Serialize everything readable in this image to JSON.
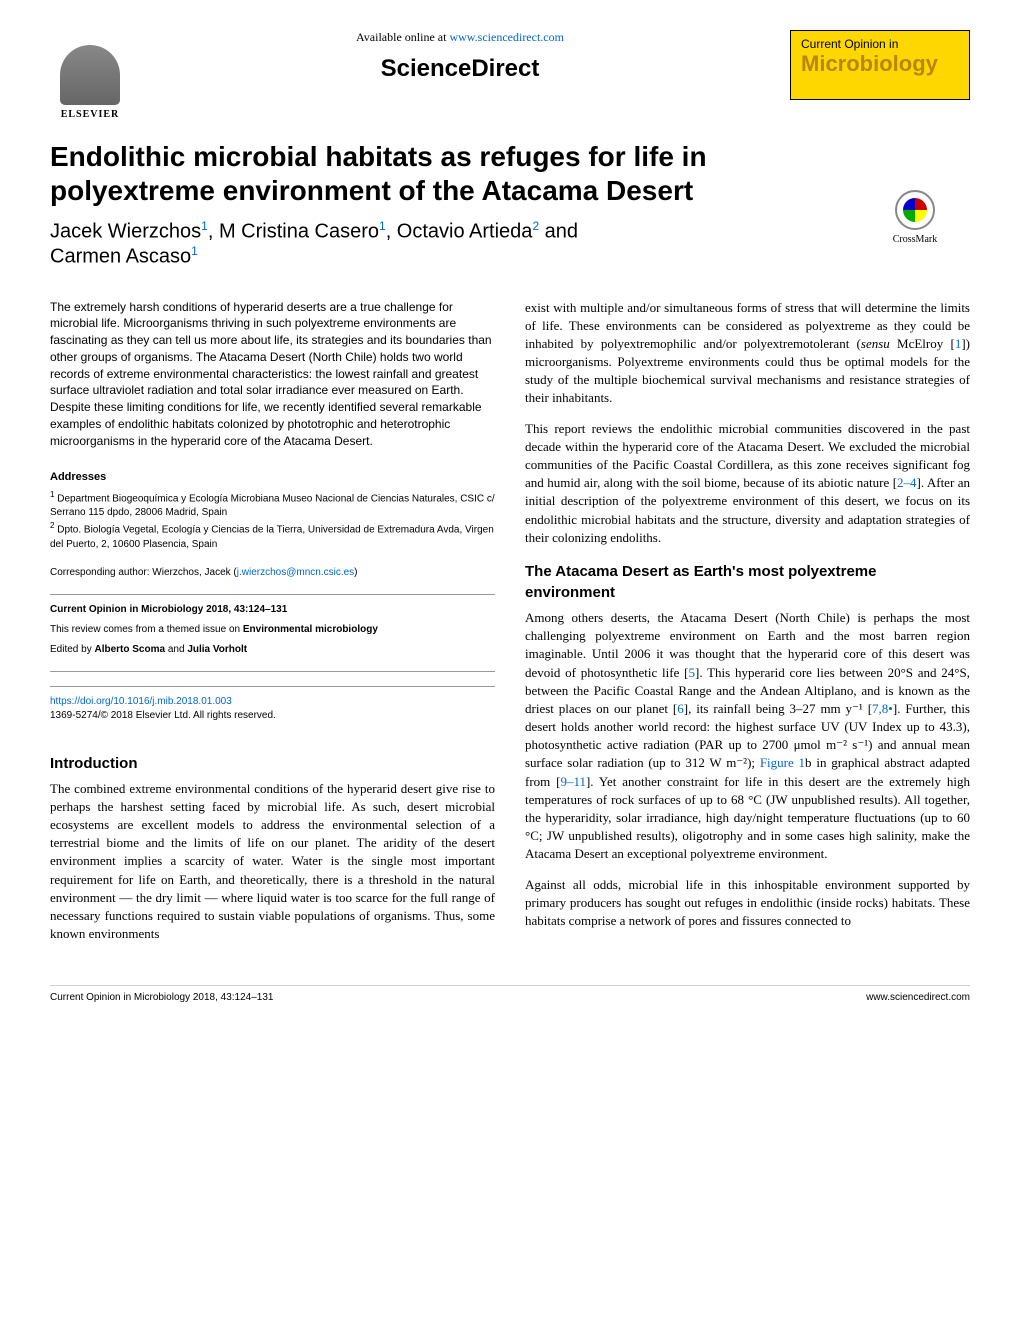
{
  "header": {
    "available_text": "Available online at ",
    "available_url": "www.sciencedirect.com",
    "sciencedirect": "ScienceDirect",
    "elsevier": "ELSEVIER",
    "journal_subtitle": "Current Opinion in",
    "journal_title": "Microbiology",
    "crossmark": "CrossMark"
  },
  "article": {
    "title": "Endolithic microbial habitats as refuges for life in polyextreme environment of the Atacama Desert",
    "authors_line1_a": "Jacek Wierzchos",
    "authors_line1_b": ", M Cristina Casero",
    "authors_line1_c": ", Octavio Artieda",
    "authors_line1_d": " and",
    "authors_line2": "Carmen Ascaso",
    "sup1": "1",
    "sup2": "2"
  },
  "abstract": "The extremely harsh conditions of hyperarid deserts are a true challenge for microbial life. Microorganisms thriving in such polyextreme environments are fascinating as they can tell us more about life, its strategies and its boundaries than other groups of organisms. The Atacama Desert (North Chile) holds two world records of extreme environmental characteristics: the lowest rainfall and greatest surface ultraviolet radiation and total solar irradiance ever measured on Earth. Despite these limiting conditions for life, we recently identified several remarkable examples of endolithic habitats colonized by phototrophic and heterotrophic microorganisms in the hyperarid core of the Atacama Desert.",
  "addresses": {
    "head": "Addresses",
    "a1": " Department Biogeoquímica y Ecología Microbiana Museo Nacional de Ciencias Naturales, CSIC c/ Serrano 115 dpdo, 28006 Madrid, Spain",
    "a2": " Dpto. Biología Vegetal, Ecología y Ciencias de la Tierra, Universidad de Extremadura Avda, Virgen del Puerto, 2, 10600 Plasencia, Spain"
  },
  "corresponding": {
    "text": "Corresponding author: Wierzchos, Jacek (",
    "email": "j.wierzchos@mncn.csic.es",
    "close": ")"
  },
  "infobox": {
    "citation": "Current Opinion in Microbiology 2018, 43:124–131",
    "review_text": "This review comes from a themed issue on ",
    "review_bold": "Environmental microbiology",
    "edited_text": "Edited by ",
    "editor1": "Alberto Scoma",
    "edited_and": " and ",
    "editor2": "Julia Vorholt"
  },
  "doibox": {
    "doi": "https://doi.org/10.1016/j.mib.2018.01.003",
    "copyright": "1369-5274/© 2018 Elsevier Ltd. All rights reserved."
  },
  "sections": {
    "intro_head": "Introduction",
    "intro_p1": "The combined extreme environmental conditions of the hyperarid desert give rise to perhaps the harshest setting faced by microbial life. As such, desert microbial ecosystems are excellent models to address the environmental selection of a terrestrial biome and the limits of life on our planet. The aridity of the desert environment implies a scarcity of water. Water is the single most important requirement for life on Earth, and theoretically, there is a threshold in the natural environment — the dry limit — where liquid water is too scarce for the full range of necessary functions required to sustain viable populations of organisms. Thus, some known environments",
    "col2_p1a": "exist with multiple and/or simultaneous forms of stress that will determine the limits of life. These environments can be considered as polyextreme as they could be inhabited by polyextremophilic and/or polyextremotolerant (",
    "col2_p1_sensu": "sensu",
    "col2_p1b": " McElroy [",
    "col2_p1_ref1": "1",
    "col2_p1c": "]) microorganisms. Polyextreme environments could thus be optimal models for the study of the multiple biochemical survival mechanisms and resistance strategies of their inhabitants.",
    "col2_p2a": "This report reviews the endolithic microbial communities discovered in the past decade within the hyperarid core of the Atacama Desert. We excluded the microbial communities of the Pacific Coastal Cordillera, as this zone receives significant fog and humid air, along with the soil biome, because of its abiotic nature [",
    "col2_p2_ref": "2–4",
    "col2_p2b": "]. After an initial description of the polyextreme environment of this desert, we focus on its endolithic microbial habitats and the structure, diversity and adaptation strategies of their colonizing endoliths.",
    "atacama_head": "The Atacama Desert as Earth's most polyextreme environment",
    "atacama_p1a": "Among others deserts, the Atacama Desert (North Chile) is perhaps the most challenging polyextreme environment on Earth and the most barren region imaginable. Until 2006 it was thought that the hyperarid core of this desert was devoid of photosynthetic life [",
    "atacama_ref5": "5",
    "atacama_p1b": "]. This hyperarid core lies between 20°S and 24°S, between the Pacific Coastal Range and the Andean Altiplano, and is known as the driest places on our planet [",
    "atacama_ref6": "6",
    "atacama_p1c": "], its rainfall being 3–27 mm y⁻¹ [",
    "atacama_ref78": "7,8•",
    "atacama_p1d": "]. Further, this desert holds another world record: the highest surface UV (UV Index up to 43.3), photosynthetic active radiation (PAR up to 2700 μmol m⁻² s⁻¹) and annual mean surface solar radiation (up to 312 W m⁻²); ",
    "atacama_fig": "Figure 1",
    "atacama_p1e": "b in graphical abstract adapted from [",
    "atacama_ref911": "9–11",
    "atacama_p1f": "]. Yet another constraint for life in this desert are the extremely high temperatures of rock surfaces of up to 68 °C (JW unpublished results). All together, the hyperaridity, solar irradiance, high day/night temperature fluctuations (up to 60 °C; JW unpublished results), oligotrophy and in some cases high salinity, make the Atacama Desert an exceptional polyextreme environment.",
    "atacama_p2": "Against all odds, microbial life in this inhospitable environment supported by primary producers has sought out refuges in endolithic (inside rocks) habitats. These habitats comprise a network of pores and fissures connected to"
  },
  "footer": {
    "left": "Current Opinion in Microbiology 2018, 43:124–131",
    "right": "www.sciencedirect.com"
  },
  "colors": {
    "link": "#0066cc",
    "journal_bg": "#ffd700",
    "journal_fg": "#b8860b"
  }
}
